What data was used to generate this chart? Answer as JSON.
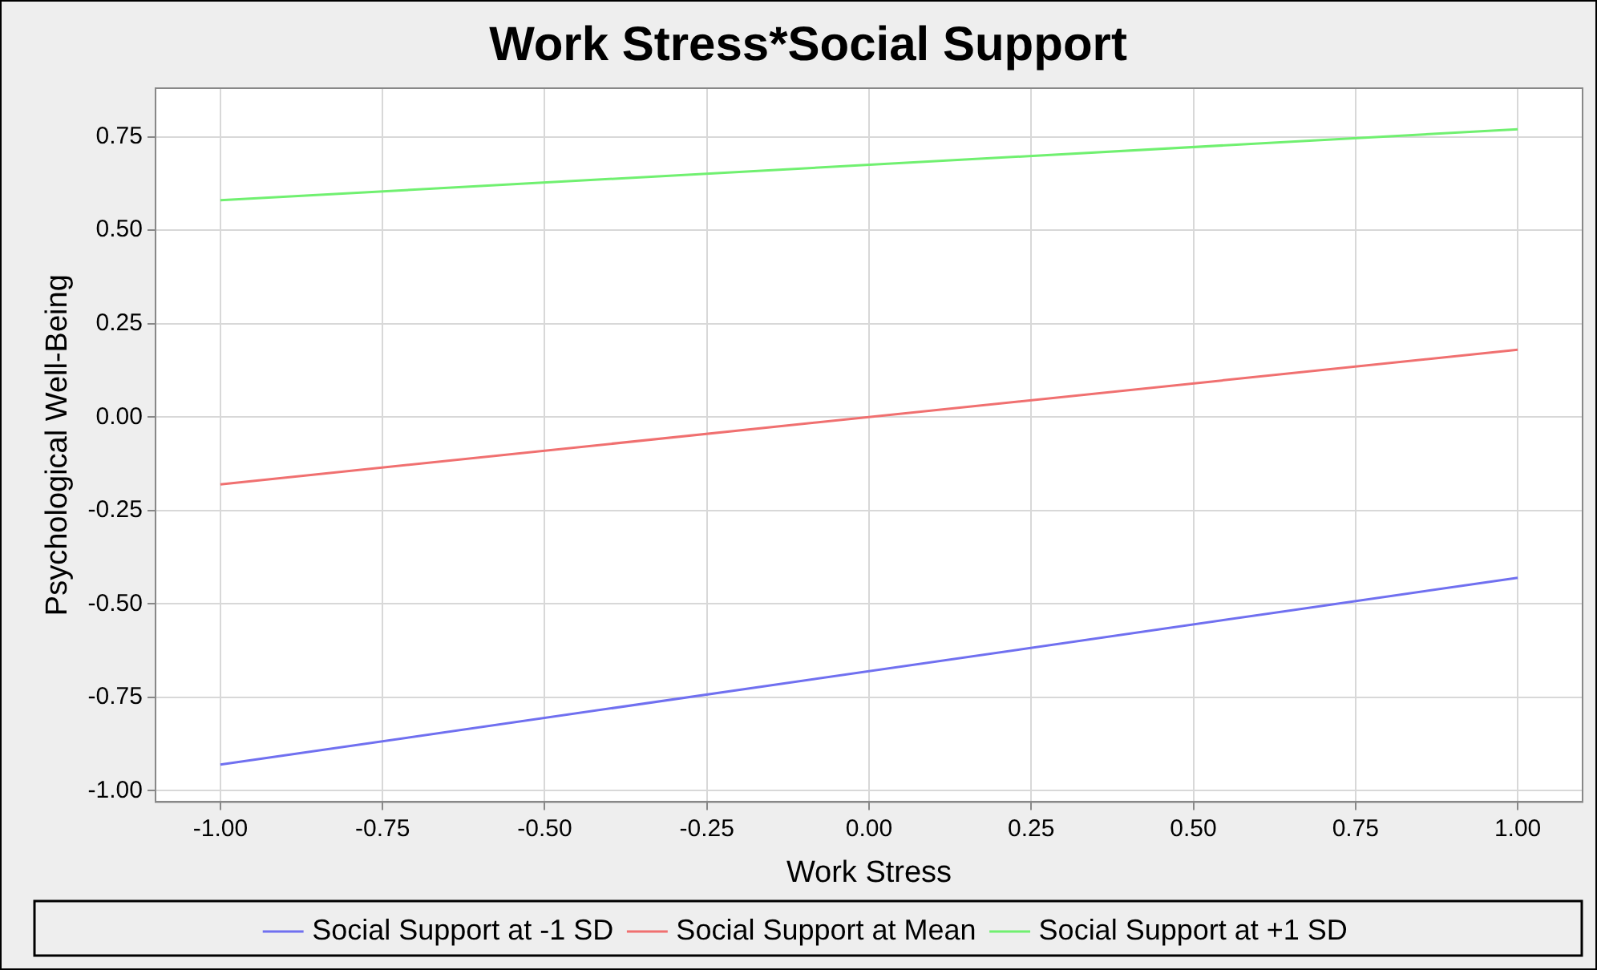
{
  "chart_data": {
    "type": "line",
    "title": "Work Stress*Social Support",
    "xlabel": "Work Stress",
    "ylabel": "Psychological Well-Being",
    "x": [
      -1.0,
      1.0
    ],
    "series": [
      {
        "name": "Social Support at -1 SD",
        "color": "#7070f0",
        "values": [
          -0.93,
          -0.43
        ]
      },
      {
        "name": "Social Support at Mean",
        "color": "#f07070",
        "values": [
          -0.18,
          0.18
        ]
      },
      {
        "name": "Social Support at +1 SD",
        "color": "#70f070",
        "values": [
          0.58,
          0.77
        ]
      }
    ],
    "xlim": [
      -1.1,
      1.1
    ],
    "xticks": [
      {
        "value": -1.0,
        "label": "-1.00"
      },
      {
        "value": -0.75,
        "label": "-0.75"
      },
      {
        "value": -0.5,
        "label": "-0.50"
      },
      {
        "value": -0.25,
        "label": "-0.25"
      },
      {
        "value": 0,
        "label": "0.00"
      },
      {
        "value": 0.25,
        "label": "0.25"
      },
      {
        "value": 0.5,
        "label": "0.50"
      },
      {
        "value": 0.75,
        "label": "0.75"
      },
      {
        "value": 1.0,
        "label": "1.00"
      }
    ],
    "ylim": [
      -1.03,
      0.88
    ],
    "yticks": [
      {
        "value": -1.0,
        "label": "-1.00"
      },
      {
        "value": -0.75,
        "label": "-0.75"
      },
      {
        "value": -0.5,
        "label": "-0.50"
      },
      {
        "value": -0.25,
        "label": "-0.25"
      },
      {
        "value": 0,
        "label": "0.00"
      },
      {
        "value": 0.25,
        "label": "0.25"
      },
      {
        "value": 0.5,
        "label": "0.50"
      },
      {
        "value": 0.75,
        "label": "0.75"
      }
    ],
    "grid": true,
    "legend": "bottom",
    "marker": "none",
    "line_style": "solid"
  }
}
